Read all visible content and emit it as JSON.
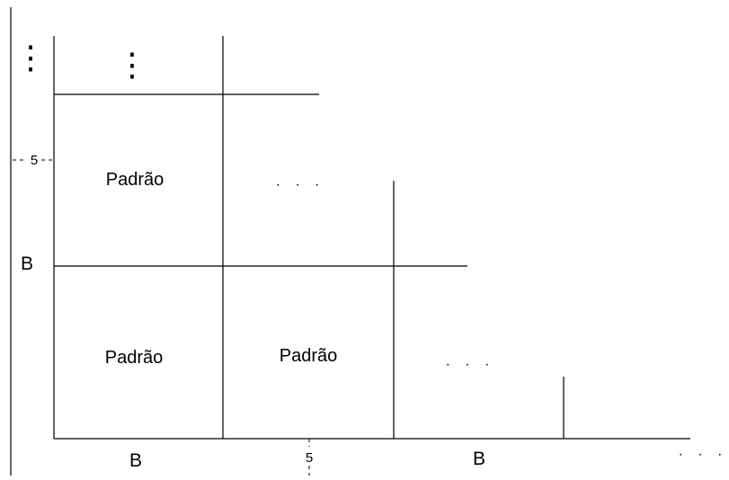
{
  "cell_label": "Padrão",
  "axis_label": "B",
  "tick_label": "5",
  "ellipsis": "· · ·",
  "vertical_ellipsis": "⋮",
  "colors": {
    "ink": "#000000",
    "background": "#ffffff"
  }
}
